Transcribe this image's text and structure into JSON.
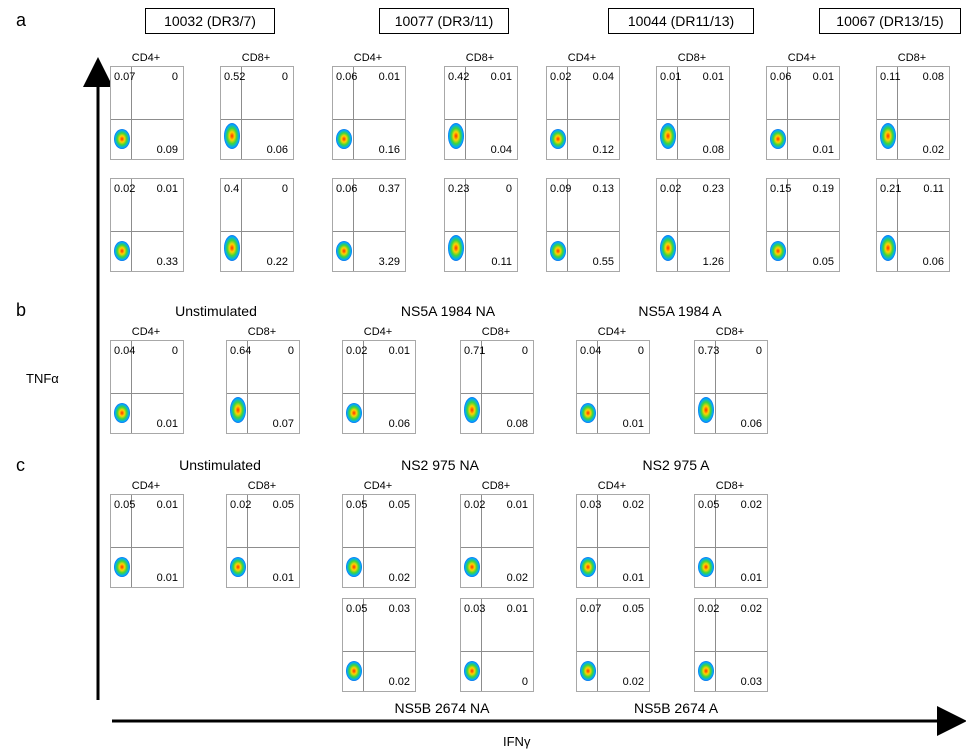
{
  "figure": {
    "panel_letters": [
      "a",
      "b",
      "c"
    ],
    "y_axis_label": "TNFα",
    "x_axis_label": "IFNγ",
    "cell_labels": {
      "cd4": "CD4+",
      "cd8": "CD8+"
    },
    "panel_a": {
      "donors": [
        "10032 (DR3/7)",
        "10077 (DR3/11)",
        "10044 (DR11/13)",
        "10067 (DR13/15)"
      ],
      "rows": [
        [
          {
            "ul": "0.07",
            "ur": "0",
            "lr": "0.09"
          },
          {
            "ul": "0.52",
            "ur": "0",
            "lr": "0.06"
          },
          {
            "ul": "0.06",
            "ur": "0.01",
            "lr": "0.16"
          },
          {
            "ul": "0.42",
            "ur": "0.01",
            "lr": "0.04"
          },
          {
            "ul": "0.02",
            "ur": "0.04",
            "lr": "0.12"
          },
          {
            "ul": "0.01",
            "ur": "0.01",
            "lr": "0.08"
          },
          {
            "ul": "0.06",
            "ur": "0.01",
            "lr": "0.01"
          },
          {
            "ul": "0.11",
            "ur": "0.08",
            "lr": "0.02"
          }
        ],
        [
          {
            "ul": "0.02",
            "ur": "0.01",
            "lr": "0.33"
          },
          {
            "ul": "0.4",
            "ur": "0",
            "lr": "0.22"
          },
          {
            "ul": "0.06",
            "ur": "0.37",
            "lr": "3.29"
          },
          {
            "ul": "0.23",
            "ur": "0",
            "lr": "0.11"
          },
          {
            "ul": "0.09",
            "ur": "0.13",
            "lr": "0.55"
          },
          {
            "ul": "0.02",
            "ur": "0.23",
            "lr": "1.26"
          },
          {
            "ul": "0.15",
            "ur": "0.19",
            "lr": "0.05"
          },
          {
            "ul": "0.21",
            "ur": "0.11",
            "lr": "0.06"
          }
        ]
      ]
    },
    "panel_b": {
      "groups": [
        "Unstimulated",
        "NS5A 1984 NA",
        "NS5A 1984 A"
      ],
      "plots": [
        {
          "ul": "0.04",
          "ur": "0",
          "lr": "0.01"
        },
        {
          "ul": "0.64",
          "ur": "0",
          "lr": "0.07"
        },
        {
          "ul": "0.02",
          "ur": "0.01",
          "lr": "0.06"
        },
        {
          "ul": "0.71",
          "ur": "0",
          "lr": "0.08"
        },
        {
          "ul": "0.04",
          "ur": "0",
          "lr": "0.01"
        },
        {
          "ul": "0.73",
          "ur": "0",
          "lr": "0.06"
        }
      ]
    },
    "panel_c": {
      "groups": [
        "Unstimulated",
        "NS2 975 NA",
        "NS2 975 A"
      ],
      "bottom_groups": [
        "NS5B 2674 NA",
        "NS5B 2674 A"
      ],
      "row1": [
        {
          "ul": "0.05",
          "ur": "0.01",
          "lr": "0.01"
        },
        {
          "ul": "0.02",
          "ur": "0.05",
          "lr": "0.01"
        },
        {
          "ul": "0.05",
          "ur": "0.05",
          "lr": "0.02"
        },
        {
          "ul": "0.02",
          "ur": "0.01",
          "lr": "0.02"
        },
        {
          "ul": "0.03",
          "ur": "0.02",
          "lr": "0.01"
        },
        {
          "ul": "0.05",
          "ur": "0.02",
          "lr": "0.01"
        }
      ],
      "row2": [
        {
          "ul": "0.05",
          "ur": "0.03",
          "lr": "0.02"
        },
        {
          "ul": "0.03",
          "ur": "0.01",
          "lr": "0"
        },
        {
          "ul": "0.07",
          "ur": "0.05",
          "lr": "0.02"
        },
        {
          "ul": "0.02",
          "ur": "0.02",
          "lr": "0.03"
        }
      ]
    }
  }
}
